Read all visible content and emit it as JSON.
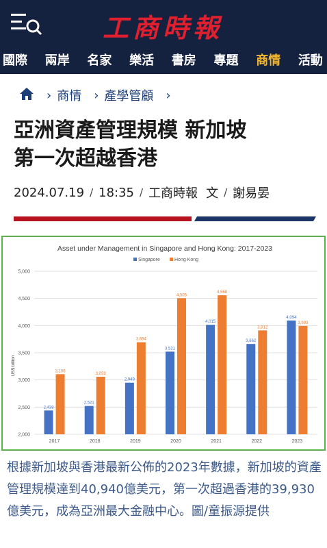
{
  "header": {
    "logo_text": "工商時報",
    "menu_icon": "menu-search-icon",
    "nav": [
      {
        "label": "國際",
        "active": false
      },
      {
        "label": "兩岸",
        "active": false
      },
      {
        "label": "名家",
        "active": false
      },
      {
        "label": "樂活",
        "active": false
      },
      {
        "label": "書房",
        "active": false
      },
      {
        "label": "專題",
        "active": false
      },
      {
        "label": "商情",
        "active": true
      },
      {
        "label": "活動",
        "active": false
      }
    ]
  },
  "breadcrumb": {
    "home_icon": "home-icon",
    "items": [
      "商情",
      "產學管顧"
    ]
  },
  "article": {
    "title_line1": "亞洲資產管理規模 新加坡",
    "title_line2": "第一次超越香港",
    "date": "2024.07.19",
    "time": "18:35",
    "source": "工商時報",
    "author_prefix": "文",
    "author": "謝易晏",
    "caption": "根據新加坡與香港最新公佈的2023年數據，新加坡的資產管理規模達到40,940億美元，第一次超過香港的39,930億美元，成為亞洲最大金融中心。圖/童振源提供"
  },
  "colors": {
    "header_bg": "#14213f",
    "logo": "#e0202e",
    "nav_active": "#f3b62a",
    "singapore": "#4472c4",
    "hong_kong": "#ed7d31"
  },
  "chart_data": {
    "type": "bar",
    "title": "Asset under Management in Singapore and Hong Kong: 2017-2023",
    "ylabel": "US$ billion",
    "xlabel": "",
    "legend_position": "top-center",
    "grid": true,
    "ylim": [
      2000,
      5000
    ],
    "yticks": [
      "2,000",
      "2,500",
      "3,000",
      "3,500",
      "4,000",
      "4,500",
      "5,000"
    ],
    "categories": [
      "2017",
      "2018",
      "2019",
      "2020",
      "2021",
      "2022",
      "2023"
    ],
    "series": [
      {
        "name": "Singapore",
        "values": [
          2438,
          2521,
          2949,
          3521,
          4015,
          3662,
          4094
        ],
        "labels": [
          "2,438",
          "2,521",
          "2,949",
          "3,521",
          "4,015",
          "3,662",
          "4,094"
        ]
      },
      {
        "name": "Hong Kong",
        "values": [
          3106,
          3059,
          3694,
          4505,
          4558,
          3912,
          3993
        ],
        "labels": [
          "3,106",
          "3,059",
          "3,694",
          "4,505",
          "4,558",
          "3,912",
          "3,993"
        ]
      }
    ]
  }
}
